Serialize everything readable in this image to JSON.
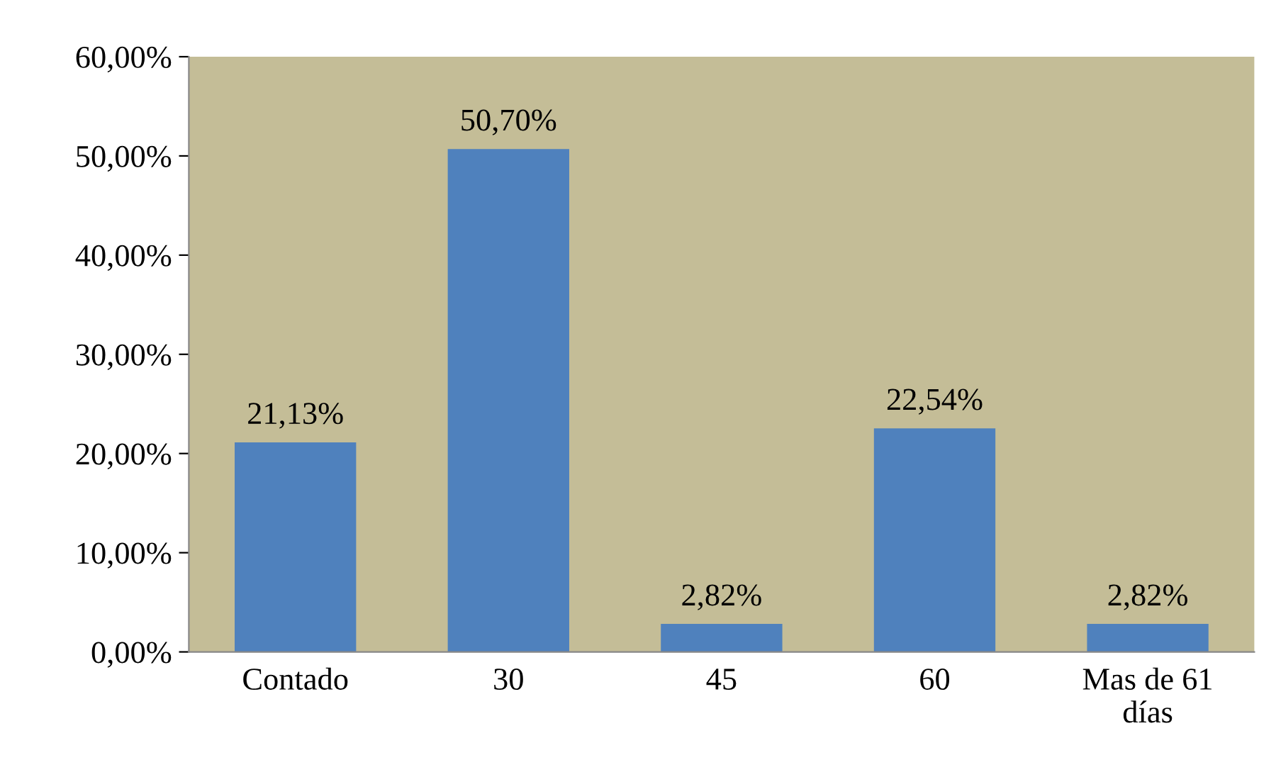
{
  "chart_data": {
    "type": "bar",
    "categories": [
      "Contado",
      "30",
      "45",
      "60",
      "Mas de 61\ndías"
    ],
    "values": [
      21.13,
      50.7,
      2.82,
      22.54,
      2.82
    ],
    "value_labels": [
      "21,13%",
      "50,70%",
      "2,82%",
      "22,54%",
      "2,82%"
    ],
    "color": "#4f81bd",
    "ylim": [
      0,
      60
    ],
    "yticks": [
      {
        "value": 0,
        "label": "0,00%"
      },
      {
        "value": 10,
        "label": "10,00%"
      },
      {
        "value": 20,
        "label": "20,00%"
      },
      {
        "value": 30,
        "label": "30,00%"
      },
      {
        "value": 40,
        "label": "40,00%"
      },
      {
        "value": 50,
        "label": "50,00%"
      },
      {
        "value": 60,
        "label": "60,00%"
      }
    ],
    "grid": false
  }
}
